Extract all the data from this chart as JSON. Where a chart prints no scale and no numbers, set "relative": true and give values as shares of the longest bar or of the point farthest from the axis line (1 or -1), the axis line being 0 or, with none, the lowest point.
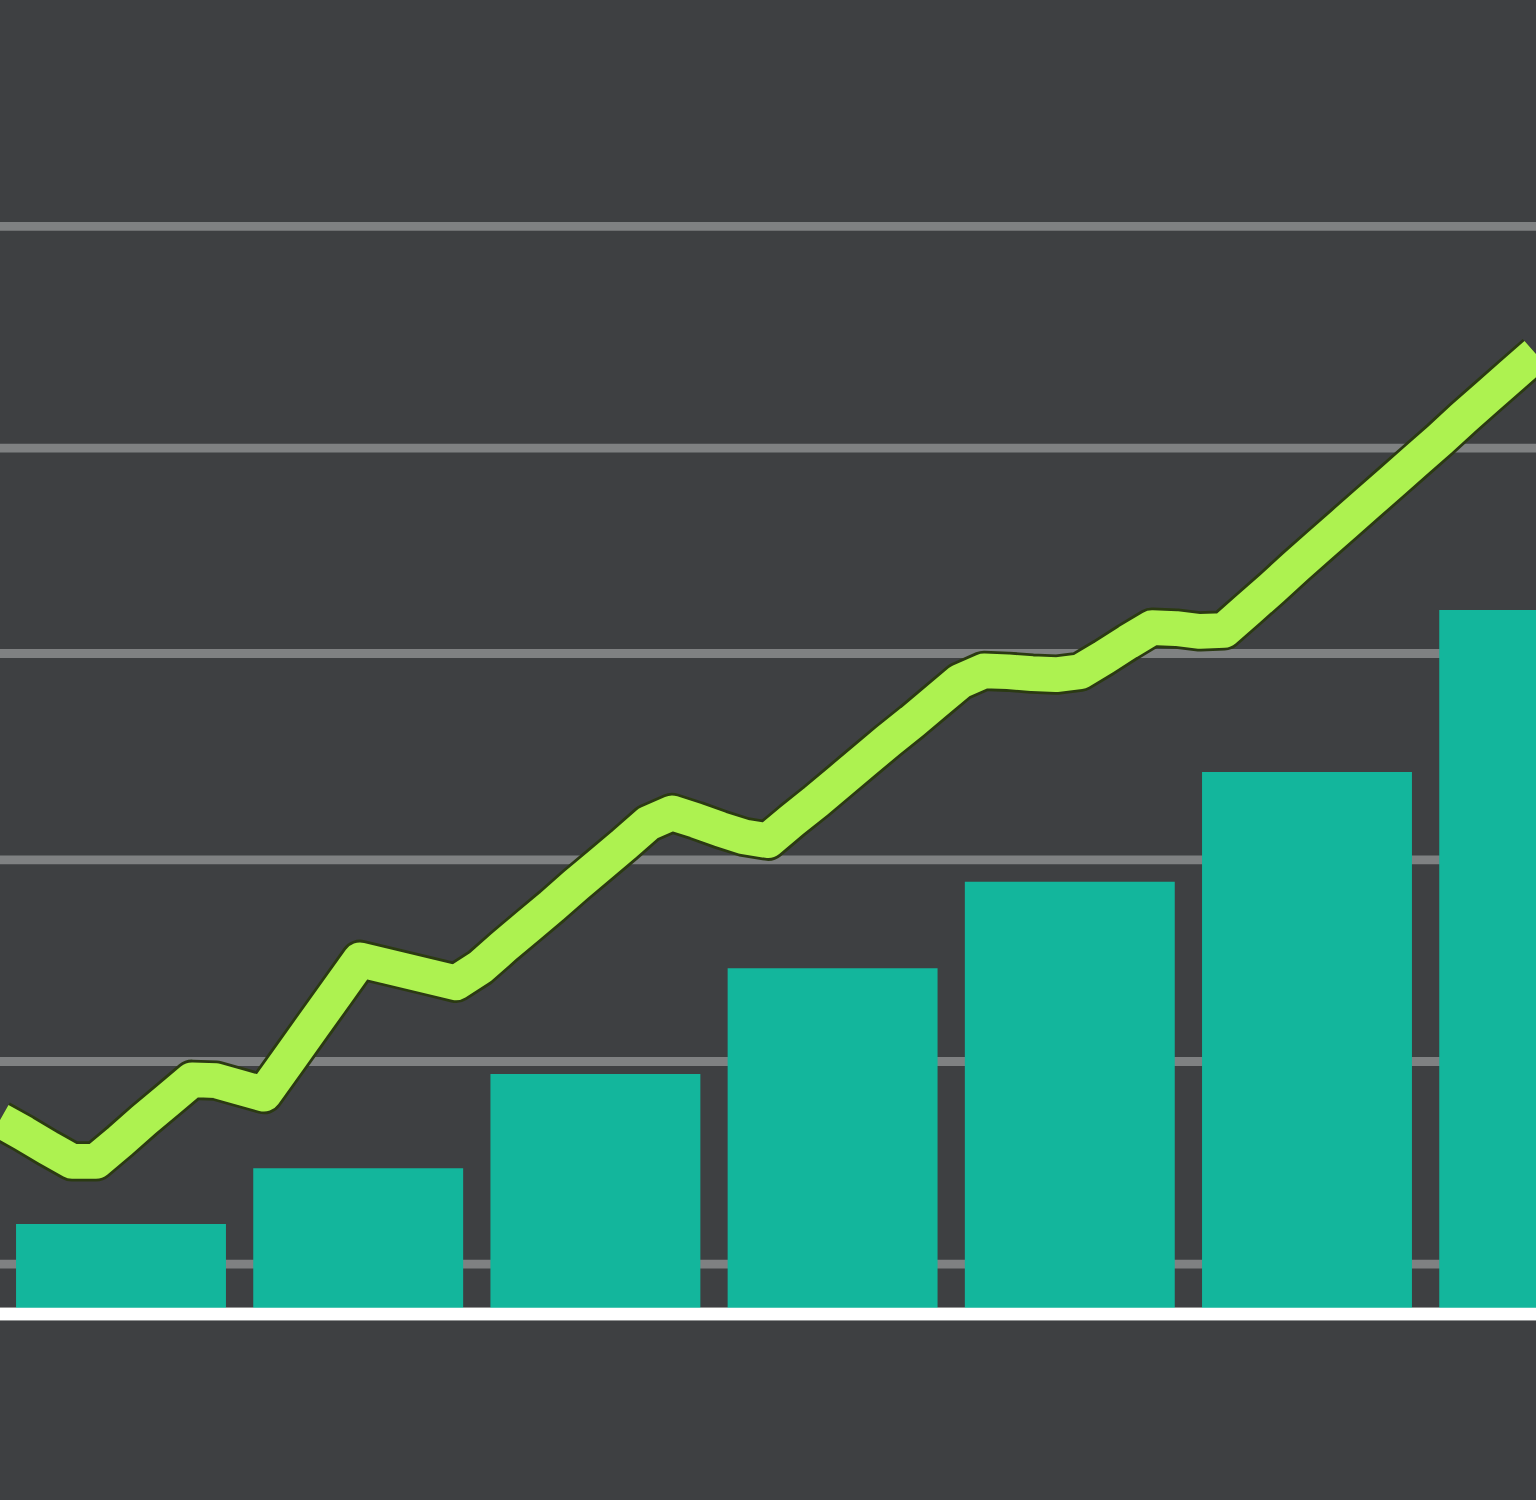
{
  "chart_data": [
    {
      "type": "line",
      "relative": true,
      "categories": [
        null,
        null,
        null,
        null,
        null,
        null,
        null,
        null,
        null,
        null,
        null,
        null,
        null,
        null,
        null,
        null,
        null,
        null,
        null,
        null,
        null,
        null,
        null,
        null,
        null,
        null,
        null,
        null,
        null,
        null,
        null,
        null,
        null,
        null,
        null,
        null,
        null,
        null,
        null,
        null,
        null,
        null,
        null,
        null,
        null,
        null,
        null,
        null,
        null,
        null,
        null,
        null,
        null,
        null,
        null,
        null,
        null,
        null,
        null,
        null,
        null,
        null,
        null,
        null,
        null
      ],
      "color": "#adf250",
      "marker": "none",
      "line_style": "solid",
      "values": [
        0.202,
        0.188,
        0.173,
        0.159,
        0.159,
        0.18,
        0.202,
        0.223,
        0.244,
        0.243,
        0.236,
        0.229,
        0.264,
        0.299,
        0.334,
        0.369,
        0.363,
        0.357,
        0.351,
        0.345,
        0.361,
        0.383,
        0.404,
        0.425,
        0.447,
        0.468,
        0.489,
        0.511,
        0.522,
        0.514,
        0.505,
        0.497,
        0.493,
        0.514,
        0.534,
        0.555,
        0.576,
        0.597,
        0.617,
        0.638,
        0.659,
        0.67,
        0.669,
        0.667,
        0.666,
        0.669,
        0.684,
        0.7,
        0.715,
        0.714,
        0.711,
        0.712,
        0.734,
        0.756,
        0.779,
        0.801,
        0.823,
        0.845,
        0.867,
        0.889,
        0.911,
        0.934,
        0.956,
        0.978,
        1.0
      ],
      "ref_lines": [
        {
          "axis": "y",
          "value": 0.052,
          "color": "#7f8182"
        },
        {
          "axis": "y",
          "value": 0.263,
          "color": "#7f8182"
        },
        {
          "axis": "y",
          "value": 0.473,
          "color": "#7f8182"
        },
        {
          "axis": "y",
          "value": 0.688,
          "color": "#7f8182"
        },
        {
          "axis": "y",
          "value": 0.902,
          "color": "#7f8182"
        },
        {
          "axis": "y",
          "value": 1.133,
          "color": "#7f8182"
        }
      ]
    },
    {
      "type": "bar",
      "relative": true,
      "categories": [
        null,
        null,
        null,
        null,
        null,
        null,
        null
      ],
      "color": "#13b69c",
      "values": [
        0.128,
        0.207,
        0.341,
        0.491,
        0.614,
        0.77,
        1.0
      ]
    }
  ]
}
